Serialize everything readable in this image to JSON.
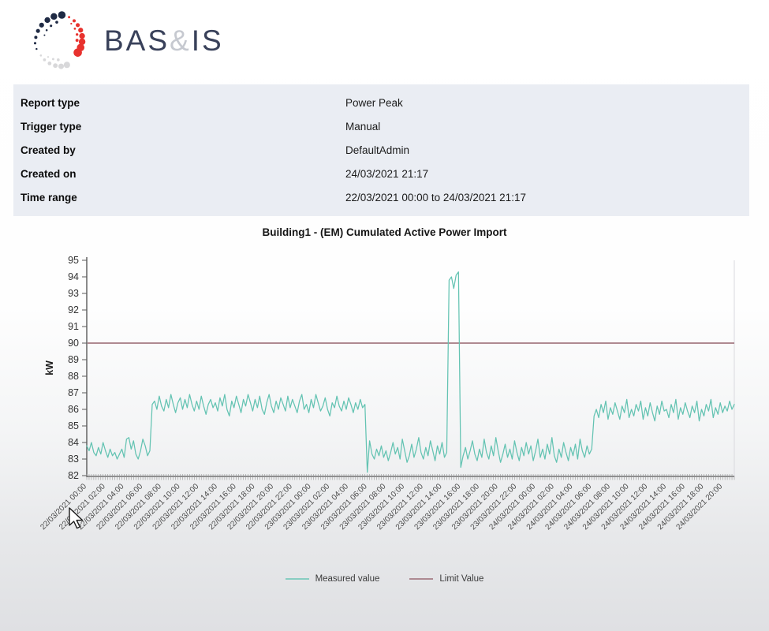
{
  "brand": {
    "name_primary": "BAS",
    "ampersand": "&",
    "name_secondary": "IS"
  },
  "meta": {
    "rows": [
      {
        "label": "Report type",
        "value": "Power Peak"
      },
      {
        "label": "Trigger type",
        "value": "Manual"
      },
      {
        "label": "Created by",
        "value": "DefaultAdmin"
      },
      {
        "label": "Created on",
        "value": "24/03/2021 21:17"
      },
      {
        "label": "Time range",
        "value": "22/03/2021 00:00 to 24/03/2021 21:17"
      }
    ]
  },
  "chart_data": {
    "type": "line",
    "title": "Building1 - (EM) Cumulated Active Power Import",
    "xlabel": "",
    "ylabel": "kW",
    "ylim": [
      82,
      95
    ],
    "ytick_step": 1,
    "grid": false,
    "legend_position": "bottom",
    "x_total_hours": 69.25,
    "x_tick_interval_hours": 2,
    "x_tick_labels": [
      "22/03/2021 00:00",
      "22/03/2021 02:00",
      "22/03/2021 04:00",
      "22/03/2021 06:00",
      "22/03/2021 08:00",
      "22/03/2021 10:00",
      "22/03/2021 12:00",
      "22/03/2021 14:00",
      "22/03/2021 16:00",
      "22/03/2021 18:00",
      "22/03/2021 20:00",
      "22/03/2021 22:00",
      "23/03/2021 00:00",
      "23/03/2021 02:00",
      "23/03/2021 04:00",
      "23/03/2021 06:00",
      "23/03/2021 08:00",
      "23/03/2021 10:00",
      "23/03/2021 12:00",
      "23/03/2021 14:00",
      "23/03/2021 16:00",
      "23/03/2021 18:00",
      "23/03/2021 20:00",
      "23/03/2021 22:00",
      "24/03/2021 00:00",
      "24/03/2021 02:00",
      "24/03/2021 04:00",
      "24/03/2021 06:00",
      "24/03/2021 08:00",
      "24/03/2021 10:00",
      "24/03/2021 12:00",
      "24/03/2021 14:00",
      "24/03/2021 16:00",
      "24/03/2021 18:00",
      "24/03/2021 20:00"
    ],
    "series": [
      {
        "name": "Measured value",
        "type": "line",
        "color": "#63c3b2",
        "start_hour": 0,
        "step_hours": 0.25,
        "values": [
          83.8,
          83.5,
          84.0,
          83.4,
          83.2,
          83.7,
          83.3,
          84.0,
          83.5,
          83.1,
          83.6,
          83.2,
          83.4,
          83.0,
          83.3,
          83.6,
          83.1,
          84.2,
          84.3,
          83.6,
          84.1,
          83.3,
          83.0,
          83.5,
          84.2,
          83.8,
          83.2,
          83.5,
          86.3,
          86.5,
          86.0,
          86.8,
          86.2,
          85.9,
          86.6,
          86.1,
          86.9,
          86.3,
          85.8,
          86.4,
          86.7,
          86.0,
          86.6,
          86.1,
          86.9,
          86.3,
          85.9,
          86.5,
          86.0,
          86.8,
          86.2,
          85.7,
          86.3,
          86.6,
          86.1,
          86.4,
          85.9,
          86.7,
          86.2,
          86.9,
          86.0,
          85.6,
          86.5,
          86.1,
          86.8,
          86.3,
          85.8,
          86.6,
          86.2,
          86.9,
          86.4,
          85.9,
          86.6,
          86.1,
          86.8,
          86.0,
          85.7,
          86.4,
          86.9,
          86.2,
          85.8,
          86.5,
          86.0,
          86.7,
          86.3,
          85.9,
          86.8,
          86.1,
          86.6,
          86.2,
          85.8,
          86.5,
          86.9,
          86.0,
          86.3,
          85.8,
          86.6,
          86.1,
          86.9,
          86.4,
          85.9,
          86.2,
          86.7,
          86.0,
          85.6,
          86.4,
          86.1,
          86.8,
          86.2,
          85.9,
          86.5,
          86.0,
          86.7,
          86.3,
          85.8,
          86.4,
          86.0,
          86.6,
          86.1,
          86.3,
          82.2,
          84.1,
          83.3,
          83.0,
          83.6,
          83.2,
          83.8,
          83.1,
          83.5,
          82.9,
          83.4,
          84.0,
          83.3,
          83.7,
          83.0,
          84.2,
          83.5,
          82.8,
          83.2,
          83.9,
          83.1,
          83.6,
          84.3,
          83.4,
          83.0,
          83.7,
          83.2,
          84.1,
          83.5,
          82.9,
          83.8,
          83.3,
          84.0,
          83.1,
          83.4,
          93.8,
          94.0,
          93.3,
          94.1,
          94.3,
          82.5,
          83.2,
          83.7,
          83.0,
          83.5,
          84.1,
          83.3,
          82.9,
          83.6,
          83.1,
          84.2,
          83.4,
          83.0,
          83.8,
          83.2,
          84.3,
          83.5,
          82.8,
          83.3,
          83.9,
          83.1,
          83.6,
          83.0,
          84.1,
          83.4,
          82.9,
          83.7,
          83.2,
          84.0,
          83.3,
          83.8,
          82.9,
          83.5,
          84.2,
          83.1,
          83.6,
          83.0,
          83.9,
          83.3,
          84.3,
          83.2,
          82.8,
          83.6,
          83.1,
          84.0,
          83.4,
          82.9,
          83.7,
          83.2,
          83.9,
          83.0,
          84.2,
          83.5,
          83.1,
          83.8,
          83.3,
          83.6,
          85.6,
          86.0,
          85.5,
          86.3,
          85.8,
          86.5,
          85.4,
          86.1,
          85.7,
          86.4,
          85.9,
          85.4,
          86.2,
          85.8,
          86.6,
          85.5,
          86.0,
          85.6,
          86.3,
          85.9,
          86.5,
          85.4,
          86.1,
          85.6,
          86.4,
          85.8,
          85.3,
          86.2,
          85.7,
          86.5,
          85.9,
          86.0,
          85.5,
          86.3,
          85.8,
          86.6,
          85.4,
          86.1,
          85.7,
          86.4,
          85.9,
          85.5,
          86.2,
          85.8,
          86.5,
          85.3,
          86.0,
          85.6,
          86.3,
          85.9,
          86.6,
          85.5,
          86.1,
          85.7,
          86.4,
          85.8,
          86.2,
          85.9,
          86.5,
          86.0,
          86.3
        ]
      },
      {
        "name": "Limit Value",
        "type": "hline",
        "color": "#96646e",
        "value": 90
      }
    ]
  }
}
